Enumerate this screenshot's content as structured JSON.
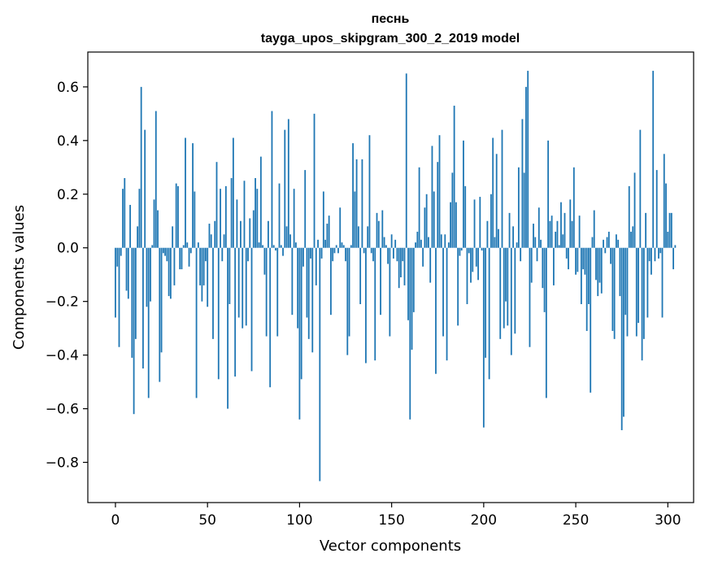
{
  "chart_data": {
    "type": "bar",
    "title_line1": "песнь",
    "title_line2": "tayga_upos_skipgram_300_2_2019 model",
    "xlabel": "Vector components",
    "ylabel": "Components values",
    "xlim": [
      -15,
      314
    ],
    "ylim": [
      -0.95,
      0.73
    ],
    "xticks": [
      0,
      50,
      100,
      150,
      200,
      250,
      300
    ],
    "xtick_labels": [
      "0",
      "50",
      "100",
      "150",
      "200",
      "250",
      "300"
    ],
    "yticks": [
      -0.8,
      -0.6,
      -0.4,
      -0.2,
      0.0,
      0.2,
      0.4,
      0.6
    ],
    "ytick_labels": [
      "−0.8",
      "−0.6",
      "−0.4",
      "−0.2",
      "0.0",
      "0.2",
      "0.4",
      "0.6"
    ],
    "bar_color": "#1f77b4",
    "values": [
      -0.26,
      -0.07,
      -0.37,
      -0.03,
      0.22,
      0.26,
      -0.16,
      -0.19,
      0.16,
      -0.41,
      -0.62,
      -0.34,
      0.08,
      0.22,
      0.6,
      -0.45,
      0.44,
      -0.22,
      -0.56,
      -0.2,
      0.01,
      0.18,
      0.51,
      0.14,
      -0.5,
      -0.39,
      -0.02,
      -0.03,
      -0.05,
      -0.18,
      -0.19,
      0.08,
      -0.14,
      0.24,
      0.23,
      -0.08,
      -0.08,
      0.01,
      0.41,
      0.02,
      -0.07,
      -0.02,
      0.39,
      0.21,
      -0.56,
      0.02,
      -0.14,
      -0.2,
      -0.14,
      -0.05,
      -0.22,
      0.09,
      0.05,
      -0.34,
      0.1,
      0.32,
      -0.49,
      0.22,
      -0.05,
      0.05,
      0.23,
      -0.6,
      -0.21,
      0.26,
      0.41,
      -0.48,
      0.18,
      -0.26,
      0.1,
      -0.3,
      0.25,
      -0.29,
      -0.05,
      0.11,
      -0.46,
      0.14,
      0.26,
      0.22,
      0.02,
      0.34,
      0.01,
      -0.1,
      -0.33,
      0.1,
      -0.52,
      0.51,
      0.01,
      -0.01,
      -0.33,
      0.24,
      0.01,
      -0.03,
      0.44,
      0.08,
      0.48,
      0.05,
      -0.25,
      0.22,
      0.02,
      -0.3,
      -0.64,
      -0.49,
      -0.07,
      0.29,
      -0.26,
      -0.34,
      -0.04,
      -0.39,
      0.5,
      -0.14,
      0.03,
      -0.87,
      -0.04,
      0.21,
      0.03,
      0.09,
      0.12,
      -0.25,
      -0.05,
      -0.02,
      0.01,
      -0.02,
      0.15,
      0.02,
      0.01,
      -0.05,
      -0.4,
      -0.33,
      0.01,
      0.39,
      0.21,
      0.33,
      0.08,
      -0.21,
      0.33,
      -0.02,
      -0.43,
      0.08,
      0.42,
      -0.02,
      -0.05,
      -0.42,
      0.13,
      0.1,
      -0.25,
      0.14,
      0.04,
      0.01,
      -0.06,
      -0.33,
      0.05,
      -0.04,
      0.03,
      -0.05,
      -0.15,
      -0.11,
      -0.05,
      -0.14,
      0.65,
      -0.27,
      -0.64,
      -0.38,
      -0.24,
      0.02,
      0.06,
      0.3,
      0.03,
      -0.07,
      0.15,
      0.2,
      0.04,
      -0.13,
      0.38,
      0.21,
      -0.47,
      0.32,
      0.42,
      0.05,
      -0.33,
      0.05,
      -0.42,
      0.02,
      0.17,
      0.28,
      0.53,
      0.17,
      -0.29,
      -0.03,
      -0.01,
      0.4,
      0.23,
      -0.21,
      -0.02,
      -0.13,
      -0.09,
      0.18,
      -0.07,
      -0.12,
      0.19,
      -0.01,
      -0.67,
      -0.41,
      0.1,
      -0.49,
      0.2,
      0.41,
      0.04,
      0.35,
      0.07,
      -0.34,
      0.44,
      -0.3,
      -0.2,
      -0.29,
      0.13,
      -0.4,
      0.08,
      -0.32,
      0.02,
      0.3,
      -0.05,
      0.48,
      0.28,
      0.6,
      0.66,
      -0.37,
      -0.13,
      0.09,
      0.04,
      -0.05,
      0.15,
      0.03,
      -0.15,
      -0.24,
      -0.56,
      0.4,
      0.1,
      0.12,
      -0.14,
      0.06,
      0.1,
      0.01,
      0.17,
      0.05,
      0.13,
      -0.04,
      -0.08,
      0.18,
      0.1,
      0.3,
      -0.1,
      -0.09,
      0.12,
      -0.21,
      -0.08,
      -0.1,
      -0.31,
      -0.21,
      -0.54,
      0.04,
      0.14,
      -0.12,
      -0.18,
      -0.13,
      -0.17,
      0.03,
      -0.02,
      0.04,
      0.06,
      -0.06,
      -0.31,
      -0.34,
      0.05,
      0.03,
      -0.18,
      -0.68,
      -0.63,
      -0.25,
      -0.33,
      0.23,
      0.06,
      0.08,
      0.28,
      -0.33,
      -0.28,
      0.44,
      -0.42,
      -0.34,
      0.13,
      -0.26,
      -0.05,
      -0.1,
      0.66,
      -0.05,
      0.29,
      -0.04,
      -0.02,
      -0.26,
      0.35,
      0.24,
      0.06,
      0.13,
      0.13,
      -0.08,
      0.01
    ]
  }
}
